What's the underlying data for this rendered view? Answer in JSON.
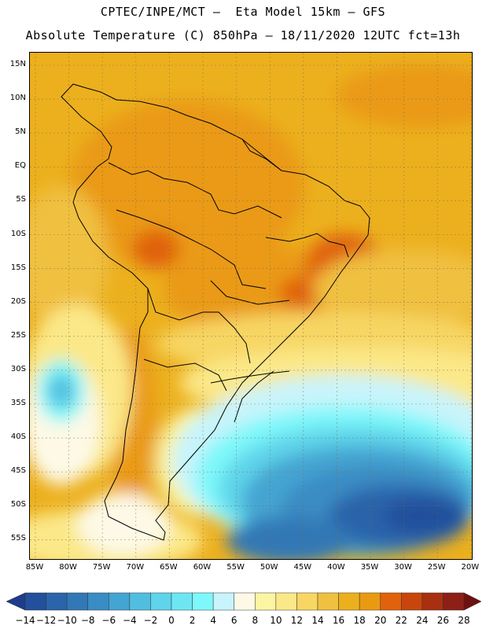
{
  "header": {
    "line1": "CPTEC/INPE/MCT –  Eta Model 15km – GFS",
    "line2": "Absolute Temperature (C) 850hPa – 18/11/2020 12UTC fct=13h"
  },
  "map": {
    "lat_labels": [
      "15N",
      "10N",
      "5N",
      "EQ",
      "5S",
      "10S",
      "15S",
      "20S",
      "25S",
      "30S",
      "35S",
      "40S",
      "45S",
      "50S",
      "55S"
    ],
    "lon_labels": [
      "85W",
      "80W",
      "75W",
      "70W",
      "65W",
      "60W",
      "55W",
      "50W",
      "45W",
      "40W",
      "35W",
      "30W",
      "25W",
      "20W"
    ]
  },
  "colorbar": {
    "labels": [
      "-14",
      "-12",
      "-10",
      "-8",
      "-6",
      "-4",
      "-2",
      "0",
      "2",
      "4",
      "6",
      "8",
      "10",
      "12",
      "14",
      "16",
      "18",
      "20",
      "22",
      "24",
      "26",
      "28"
    ],
    "colors": [
      "#1e3c8c",
      "#22509c",
      "#2a64aa",
      "#3278b6",
      "#3a8cc4",
      "#44a4d2",
      "#52bedf",
      "#5fd4ea",
      "#6ee6f2",
      "#7ef8fa",
      "#c8f4fc",
      "#fdf9e6",
      "#fbf5a4",
      "#fbe888",
      "#f7d664",
      "#f0c040",
      "#ecb01e",
      "#ea9a12",
      "#e0620c",
      "#c8460c",
      "#a83010",
      "#8c2016",
      "#6e1010"
    ]
  }
}
